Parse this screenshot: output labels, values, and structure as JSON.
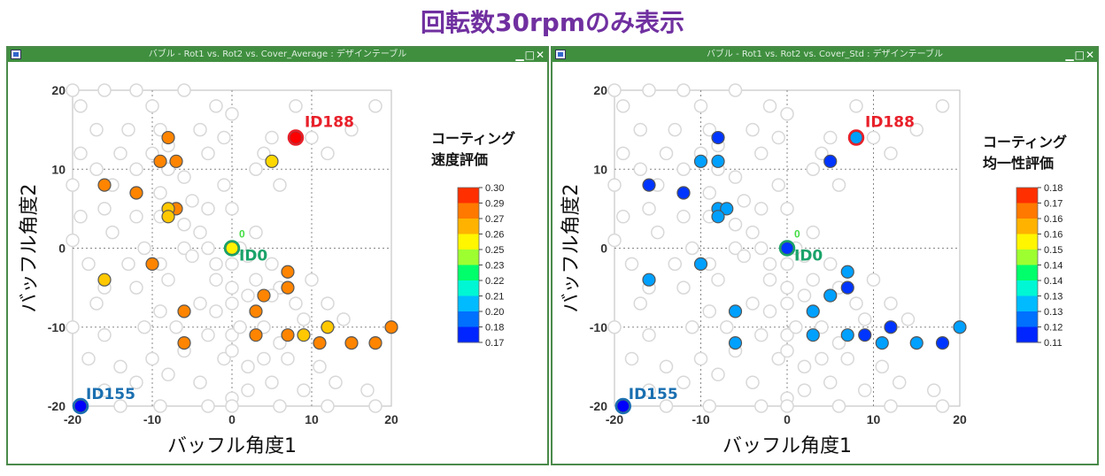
{
  "page": {
    "title": "回転数30rpmのみ表示"
  },
  "colors": {
    "title": "#7030a0",
    "window_border": "#4a8a4a",
    "window_title_bg": "#3f8f3f",
    "grid": "#888888",
    "background_point": "#d8d8d8",
    "label_red": "#e8202a",
    "label_green": "#1aa36a",
    "label_blue": "#1a6fb0"
  },
  "window_controls": {
    "icons": [
      "minimize-icon",
      "maximize-icon",
      "close-icon"
    ],
    "glyphs": "▁□✕"
  },
  "background_points": [
    [
      -20,
      20
    ],
    [
      -16,
      20
    ],
    [
      -12,
      20
    ],
    [
      -6,
      20
    ],
    [
      -19,
      18
    ],
    [
      -10,
      18
    ],
    [
      -2,
      18
    ],
    [
      0,
      17
    ],
    [
      8,
      18
    ],
    [
      18,
      18
    ],
    [
      -17,
      15
    ],
    [
      -13,
      15
    ],
    [
      -9,
      15
    ],
    [
      -4,
      15
    ],
    [
      -1,
      14
    ],
    [
      5,
      14
    ],
    [
      10,
      14
    ],
    [
      15,
      15
    ],
    [
      -22,
      13
    ],
    [
      -19,
      12
    ],
    [
      -14,
      12
    ],
    [
      -10,
      12
    ],
    [
      -8,
      13
    ],
    [
      -3,
      12
    ],
    [
      4,
      12
    ],
    [
      12,
      12
    ],
    [
      -21,
      10
    ],
    [
      -17,
      10
    ],
    [
      -12,
      10
    ],
    [
      -8,
      10
    ],
    [
      -6,
      9
    ],
    [
      -1,
      8
    ],
    [
      3,
      10
    ],
    [
      6,
      8
    ],
    [
      -20,
      8
    ],
    [
      -15,
      8
    ],
    [
      -12,
      7
    ],
    [
      -9,
      7
    ],
    [
      -5,
      6
    ],
    [
      -3,
      5
    ],
    [
      0,
      5
    ],
    [
      -19,
      4
    ],
    [
      -16,
      5
    ],
    [
      -12,
      4
    ],
    [
      -9,
      4
    ],
    [
      -6,
      3
    ],
    [
      -4,
      2
    ],
    [
      -20,
      1
    ],
    [
      -15,
      2
    ],
    [
      -11,
      0
    ],
    [
      -6,
      0
    ],
    [
      -3,
      0
    ],
    [
      1,
      0
    ],
    [
      3,
      2
    ],
    [
      -18,
      -2
    ],
    [
      -13,
      -2
    ],
    [
      -9,
      -2
    ],
    [
      -5,
      -1
    ],
    [
      -2,
      -2
    ],
    [
      0,
      -2
    ],
    [
      2,
      -1
    ],
    [
      5,
      -2
    ],
    [
      -16,
      -5
    ],
    [
      -12,
      -5
    ],
    [
      -8,
      -4
    ],
    [
      -2,
      -4
    ],
    [
      0,
      -5
    ],
    [
      3,
      -4
    ],
    [
      6,
      -5
    ],
    [
      10,
      -4
    ],
    [
      -17,
      -7
    ],
    [
      -9,
      -8
    ],
    [
      -4,
      -7
    ],
    [
      -2,
      -8
    ],
    [
      0,
      -7
    ],
    [
      2,
      -6
    ],
    [
      5,
      -6
    ],
    [
      8,
      -7
    ],
    [
      12,
      -7
    ],
    [
      -20,
      -10
    ],
    [
      -16,
      -11
    ],
    [
      -11,
      -10
    ],
    [
      -7,
      -10
    ],
    [
      -3,
      -11
    ],
    [
      0,
      -11
    ],
    [
      1,
      -10
    ],
    [
      4,
      -10
    ],
    [
      6,
      -12
    ],
    [
      9,
      -9
    ],
    [
      14,
      -9
    ],
    [
      -18,
      -14
    ],
    [
      -14,
      -15
    ],
    [
      -10,
      -14
    ],
    [
      -6,
      -13
    ],
    [
      -1,
      -14
    ],
    [
      0,
      -13
    ],
    [
      2,
      -15
    ],
    [
      4,
      -14
    ],
    [
      7,
      -14
    ],
    [
      11,
      -15
    ],
    [
      -21,
      -17
    ],
    [
      -16,
      -18
    ],
    [
      -12,
      -17
    ],
    [
      -8,
      -16
    ],
    [
      -4,
      -17
    ],
    [
      0,
      -19
    ],
    [
      2,
      -18
    ],
    [
      5,
      -17
    ],
    [
      9,
      -18
    ],
    [
      13,
      -17
    ],
    [
      17,
      -18
    ],
    [
      -14,
      -20
    ],
    [
      -9,
      -20
    ],
    [
      -3,
      -20
    ],
    [
      0,
      -20
    ],
    [
      6,
      -20
    ],
    [
      12,
      -20
    ],
    [
      18,
      -20
    ]
  ],
  "chart_data": [
    {
      "type": "scatter",
      "title": "バブル - Rot1 vs. Rot2 vs. Cover_Average : デザインテーブル",
      "xlabel": "バッフル角度1",
      "ylabel": "バッフル角度2",
      "xlim": [
        -20,
        20
      ],
      "ylim": [
        -20,
        20
      ],
      "xticks": [
        "-20",
        "-10",
        "0",
        "10",
        "20"
      ],
      "yticks": [
        "-20",
        "-10",
        "0",
        "10",
        "20"
      ],
      "grid": true,
      "legend_title": [
        "コーティング",
        "速度評価"
      ],
      "legend_ticks": [
        "0.30",
        "0.29",
        "0.27",
        "0.26",
        "0.25",
        "0.23",
        "0.22",
        "0.21",
        "0.20",
        "0.18",
        "0.17"
      ],
      "points": [
        {
          "x": 8,
          "y": 14,
          "v": 0.3
        },
        {
          "x": -8,
          "y": 14,
          "v": 0.278
        },
        {
          "x": -9,
          "y": 11,
          "v": 0.278
        },
        {
          "x": -7,
          "y": 11,
          "v": 0.278
        },
        {
          "x": 5,
          "y": 11,
          "v": 0.26
        },
        {
          "x": -16,
          "y": 8,
          "v": 0.278
        },
        {
          "x": -12,
          "y": 7,
          "v": 0.278
        },
        {
          "x": -7,
          "y": 5,
          "v": 0.278
        },
        {
          "x": -8,
          "y": 5,
          "v": 0.263
        },
        {
          "x": -8,
          "y": 4,
          "v": 0.263
        },
        {
          "x": 0,
          "y": 0,
          "v": 0.255
        },
        {
          "x": -10,
          "y": -2,
          "v": 0.278
        },
        {
          "x": 7,
          "y": -3,
          "v": 0.278
        },
        {
          "x": -16,
          "y": -4,
          "v": 0.263
        },
        {
          "x": 7,
          "y": -5,
          "v": 0.278
        },
        {
          "x": 4,
          "y": -6,
          "v": 0.278
        },
        {
          "x": -6,
          "y": -8,
          "v": 0.278
        },
        {
          "x": 3,
          "y": -8,
          "v": 0.278
        },
        {
          "x": -6,
          "y": -12,
          "v": 0.278
        },
        {
          "x": 3,
          "y": -11,
          "v": 0.278
        },
        {
          "x": 7,
          "y": -11,
          "v": 0.278
        },
        {
          "x": 9,
          "y": -11,
          "v": 0.263
        },
        {
          "x": 11,
          "y": -12,
          "v": 0.278
        },
        {
          "x": 12,
          "y": -10,
          "v": 0.263
        },
        {
          "x": 15,
          "y": -12,
          "v": 0.278
        },
        {
          "x": 18,
          "y": -12,
          "v": 0.278
        },
        {
          "x": 20,
          "y": -10,
          "v": 0.278
        },
        {
          "x": -19,
          "y": -20,
          "v": 0.17
        }
      ],
      "annotations": [
        {
          "text": "ID188",
          "x": 8,
          "y": 14,
          "color": "#e8202a",
          "marker": "#e8202a"
        },
        {
          "text": "ID0",
          "x": 0,
          "y": 0,
          "color": "#1aa36a",
          "marker": "#1aa36a",
          "small": "0"
        },
        {
          "text": "ID155",
          "x": -19,
          "y": -20,
          "color": "#1a6fb0",
          "marker": "#1a6fb0"
        }
      ]
    },
    {
      "type": "scatter",
      "title": "バブル - Rot1 vs. Rot2 vs. Cover_Std : デザインテーブル",
      "xlabel": "バッフル角度1",
      "ylabel": "バッフル角度2",
      "xlim": [
        -20,
        20
      ],
      "ylim": [
        -20,
        20
      ],
      "xticks": [
        "-20",
        "-10",
        "0",
        "10",
        "20"
      ],
      "yticks": [
        "-20",
        "-10",
        "0",
        "10",
        "20"
      ],
      "grid": true,
      "legend_title": [
        "コーティング",
        "均一性評価"
      ],
      "legend_ticks": [
        "0.18",
        "0.17",
        "0.16",
        "0.16",
        "0.15",
        "0.14",
        "0.14",
        "0.13",
        "0.13",
        "0.12",
        "0.11"
      ],
      "points": [
        {
          "x": 8,
          "y": 14,
          "v": 0.125
        },
        {
          "x": -8,
          "y": 14,
          "v": 0.115
        },
        {
          "x": -10,
          "y": 11,
          "v": 0.125
        },
        {
          "x": -8,
          "y": 11,
          "v": 0.125
        },
        {
          "x": 5,
          "y": 11,
          "v": 0.115
        },
        {
          "x": -16,
          "y": 8,
          "v": 0.115
        },
        {
          "x": -12,
          "y": 7,
          "v": 0.115
        },
        {
          "x": -8,
          "y": 5,
          "v": 0.125
        },
        {
          "x": -7,
          "y": 5,
          "v": 0.125
        },
        {
          "x": -8,
          "y": 4,
          "v": 0.125
        },
        {
          "x": 0,
          "y": 0,
          "v": 0.115
        },
        {
          "x": -10,
          "y": -2,
          "v": 0.125
        },
        {
          "x": 7,
          "y": -3,
          "v": 0.125
        },
        {
          "x": -16,
          "y": -4,
          "v": 0.125
        },
        {
          "x": 7,
          "y": -5,
          "v": 0.115
        },
        {
          "x": 5,
          "y": -6,
          "v": 0.125
        },
        {
          "x": -6,
          "y": -8,
          "v": 0.125
        },
        {
          "x": 3,
          "y": -8,
          "v": 0.125
        },
        {
          "x": -6,
          "y": -12,
          "v": 0.125
        },
        {
          "x": 3,
          "y": -11,
          "v": 0.125
        },
        {
          "x": 7,
          "y": -11,
          "v": 0.125
        },
        {
          "x": 9,
          "y": -11,
          "v": 0.115
        },
        {
          "x": 11,
          "y": -12,
          "v": 0.125
        },
        {
          "x": 12,
          "y": -10,
          "v": 0.115
        },
        {
          "x": 15,
          "y": -12,
          "v": 0.125
        },
        {
          "x": 18,
          "y": -12,
          "v": 0.115
        },
        {
          "x": 20,
          "y": -10,
          "v": 0.125
        },
        {
          "x": -19,
          "y": -20,
          "v": 0.11
        }
      ],
      "annotations": [
        {
          "text": "ID188",
          "x": 8,
          "y": 14,
          "color": "#e8202a",
          "marker": "#e8202a"
        },
        {
          "text": "ID0",
          "x": 0,
          "y": 0,
          "color": "#1aa36a",
          "marker": "#1aa36a",
          "small": "0"
        },
        {
          "text": "ID155",
          "x": -19,
          "y": -20,
          "color": "#1a6fb0",
          "marker": "#1a6fb0"
        }
      ]
    }
  ]
}
